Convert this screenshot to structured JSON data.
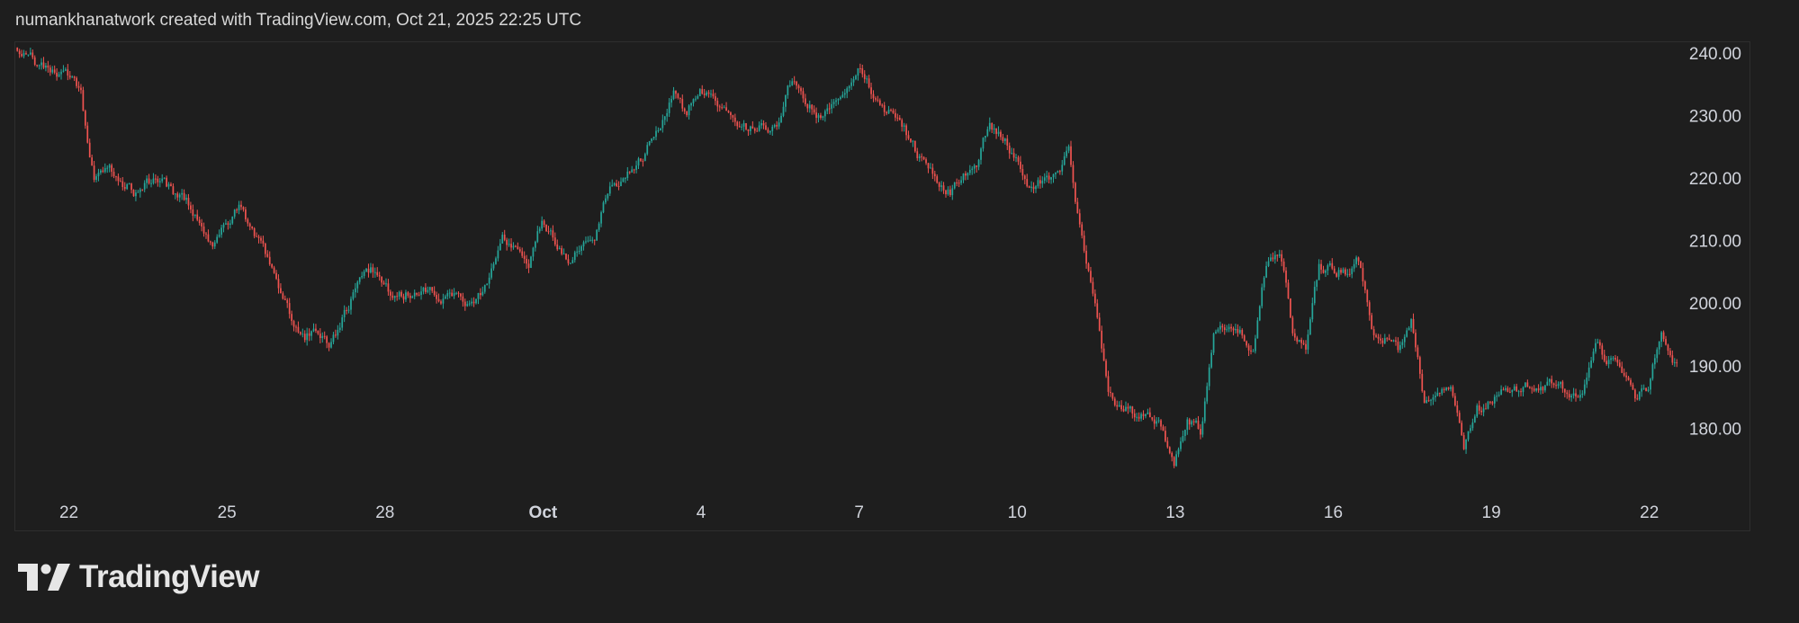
{
  "header": {
    "attribution": "numankhanatwork created with TradingView.com, Oct 21, 2025 22:25 UTC"
  },
  "brand": {
    "name": "TradingView",
    "logo_icon": "tradingview-logo-icon"
  },
  "colors": {
    "background": "#1e1e1e",
    "up": "#26a69a",
    "down": "#ef5350",
    "axis_text": "#d1d4dc",
    "frame": "#2e2e2e"
  },
  "chart_data": {
    "type": "candlestick",
    "title": "",
    "xlabel": "",
    "ylabel": "",
    "x_range": [
      "2025-09-21",
      "2025-10-22"
    ],
    "ylim": [
      171,
      242
    ],
    "grid": false,
    "y_axis_position": "right",
    "y_ticks": [
      "240.00",
      "230.00",
      "220.00",
      "210.00",
      "200.00",
      "190.00",
      "180.00"
    ],
    "y_tick_values": [
      240,
      230,
      220,
      210,
      200,
      190,
      180
    ],
    "x_ticks": [
      {
        "label": "22",
        "date": "2025-09-22",
        "bold": false
      },
      {
        "label": "25",
        "date": "2025-09-25",
        "bold": false
      },
      {
        "label": "28",
        "date": "2025-09-28",
        "bold": false
      },
      {
        "label": "Oct",
        "date": "2025-10-01",
        "bold": true
      },
      {
        "label": "4",
        "date": "2025-10-04",
        "bold": false
      },
      {
        "label": "7",
        "date": "2025-10-07",
        "bold": false
      },
      {
        "label": "10",
        "date": "2025-10-10",
        "bold": false
      },
      {
        "label": "13",
        "date": "2025-10-13",
        "bold": false
      },
      {
        "label": "16",
        "date": "2025-10-16",
        "bold": false
      },
      {
        "label": "19",
        "date": "2025-10-19",
        "bold": false
      },
      {
        "label": "22",
        "date": "2025-10-22",
        "bold": false
      }
    ],
    "price_path": [
      [
        "2025-09-21 00:00",
        241
      ],
      [
        "2025-09-21 12:00",
        238
      ],
      [
        "2025-09-22 00:00",
        237
      ],
      [
        "2025-09-22 06:00",
        233
      ],
      [
        "2025-09-22 12:00",
        220
      ],
      [
        "2025-09-22 18:00",
        222
      ],
      [
        "2025-09-23 06:00",
        218
      ],
      [
        "2025-09-23 18:00",
        220
      ],
      [
        "2025-09-24 06:00",
        216
      ],
      [
        "2025-09-24 18:00",
        210
      ],
      [
        "2025-09-25 06:00",
        215
      ],
      [
        "2025-09-25 18:00",
        208
      ],
      [
        "2025-09-26 06:00",
        198
      ],
      [
        "2025-09-26 12:00",
        195
      ],
      [
        "2025-09-26 18:00",
        196
      ],
      [
        "2025-09-27 00:00",
        194
      ],
      [
        "2025-09-27 12:00",
        203
      ],
      [
        "2025-09-27 18:00",
        205
      ],
      [
        "2025-09-28 06:00",
        201
      ],
      [
        "2025-09-28 18:00",
        203
      ],
      [
        "2025-09-29 06:00",
        201
      ],
      [
        "2025-09-29 18:00",
        200
      ],
      [
        "2025-09-30 06:00",
        210
      ],
      [
        "2025-09-30 18:00",
        207
      ],
      [
        "2025-10-01 00:00",
        214
      ],
      [
        "2025-10-01 12:00",
        207
      ],
      [
        "2025-10-02 00:00",
        210
      ],
      [
        "2025-10-02 06:00",
        218
      ],
      [
        "2025-10-02 18:00",
        222
      ],
      [
        "2025-10-03 06:00",
        228
      ],
      [
        "2025-10-03 12:00",
        234
      ],
      [
        "2025-10-03 18:00",
        230
      ],
      [
        "2025-10-04 00:00",
        235
      ],
      [
        "2025-10-04 12:00",
        230
      ],
      [
        "2025-10-05 00:00",
        228
      ],
      [
        "2025-10-05 12:00",
        229
      ],
      [
        "2025-10-05 18:00",
        236
      ],
      [
        "2025-10-06 06:00",
        230
      ],
      [
        "2025-10-06 18:00",
        233
      ],
      [
        "2025-10-07 00:00",
        237
      ],
      [
        "2025-10-07 12:00",
        231
      ],
      [
        "2025-10-07 18:00",
        230
      ],
      [
        "2025-10-08 06:00",
        222
      ],
      [
        "2025-10-08 18:00",
        218
      ],
      [
        "2025-10-09 06:00",
        222
      ],
      [
        "2025-10-09 12:00",
        229
      ],
      [
        "2025-10-09 18:00",
        227
      ],
      [
        "2025-10-10 06:00",
        219
      ],
      [
        "2025-10-10 18:00",
        221
      ],
      [
        "2025-10-11 00:00",
        224
      ],
      [
        "2025-10-11 06:00",
        210
      ],
      [
        "2025-10-11 12:00",
        200
      ],
      [
        "2025-10-11 18:00",
        185
      ],
      [
        "2025-10-12 06:00",
        182
      ],
      [
        "2025-10-12 18:00",
        181
      ],
      [
        "2025-10-13 00:00",
        175
      ],
      [
        "2025-10-13 06:00",
        182
      ],
      [
        "2025-10-13 12:00",
        180
      ],
      [
        "2025-10-13 18:00",
        195
      ],
      [
        "2025-10-14 06:00",
        196
      ],
      [
        "2025-10-14 12:00",
        193
      ],
      [
        "2025-10-14 18:00",
        207
      ],
      [
        "2025-10-15 00:00",
        209
      ],
      [
        "2025-10-15 06:00",
        196
      ],
      [
        "2025-10-15 12:00",
        193
      ],
      [
        "2025-10-15 18:00",
        206
      ],
      [
        "2025-10-16 06:00",
        205
      ],
      [
        "2025-10-16 12:00",
        207
      ],
      [
        "2025-10-16 18:00",
        196
      ],
      [
        "2025-10-17 06:00",
        193
      ],
      [
        "2025-10-17 12:00",
        197
      ],
      [
        "2025-10-17 18:00",
        184
      ],
      [
        "2025-10-18 06:00",
        186
      ],
      [
        "2025-10-18 12:00",
        177
      ],
      [
        "2025-10-18 18:00",
        183
      ],
      [
        "2025-10-19 06:00",
        186
      ],
      [
        "2025-10-19 18:00",
        187
      ],
      [
        "2025-10-20 06:00",
        187
      ],
      [
        "2025-10-20 18:00",
        185
      ],
      [
        "2025-10-21 00:00",
        193
      ],
      [
        "2025-10-21 06:00",
        191
      ],
      [
        "2025-10-21 12:00",
        189
      ],
      [
        "2025-10-21 18:00",
        185
      ],
      [
        "2025-10-22 00:00",
        187
      ],
      [
        "2025-10-22 06:00",
        196
      ],
      [
        "2025-10-22 12:00",
        191
      ]
    ]
  }
}
